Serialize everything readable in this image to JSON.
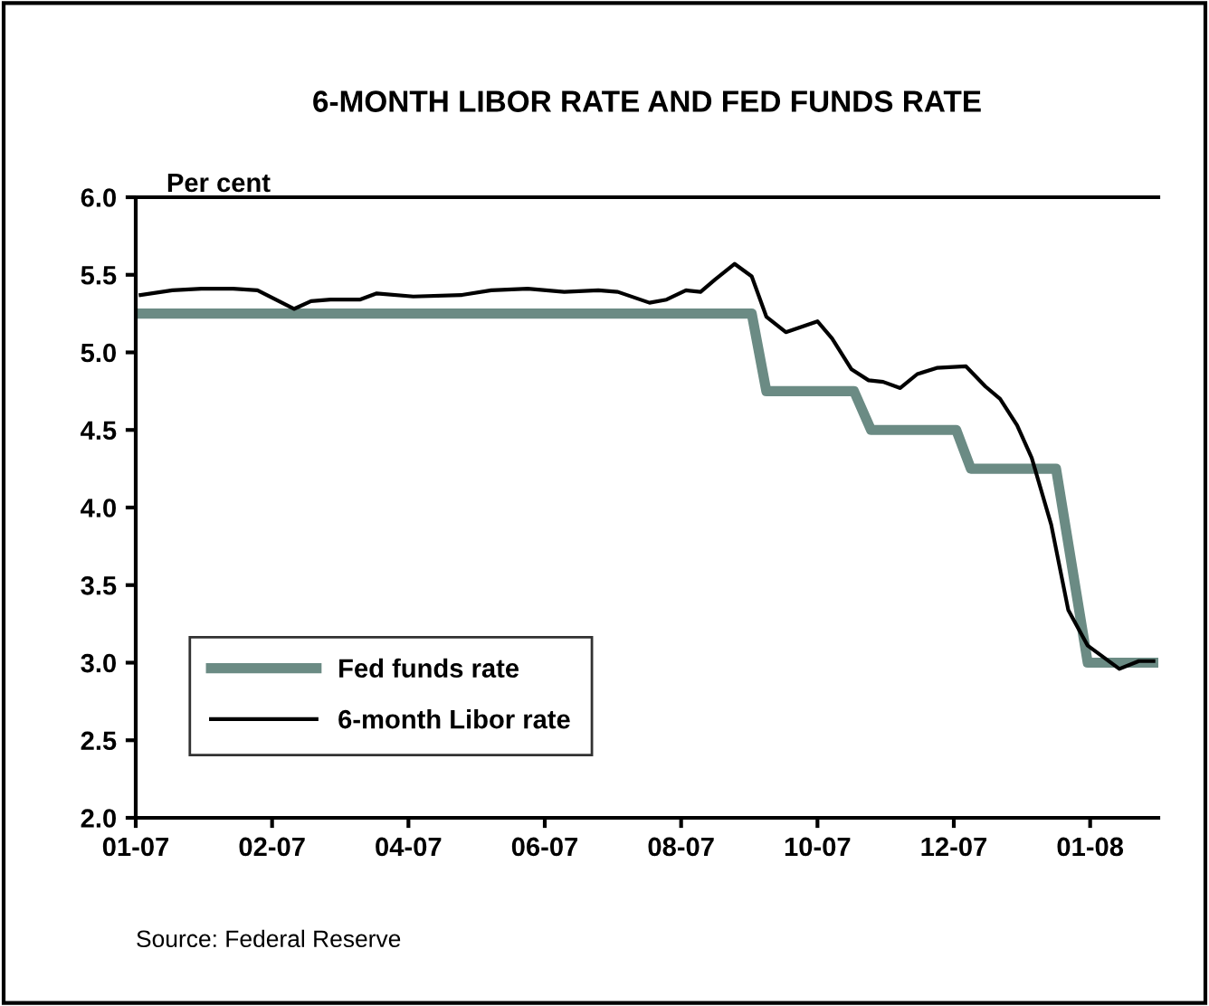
{
  "chart_data": {
    "type": "line",
    "title": "6-MONTH LIBOR RATE AND FED FUNDS RATE",
    "ylabel": "Per cent",
    "annotations": [
      "Source: Federal Reserve"
    ],
    "series": [
      {
        "name": "Fed funds rate",
        "color": "#6b8b84",
        "x": [
          "2007-01-05",
          "2007-09-13",
          "2007-09-19",
          "2007-10-25",
          "2007-11-01",
          "2007-12-06",
          "2007-12-12",
          "2008-01-16",
          "2008-01-29",
          "2008-02-25"
        ],
        "values": [
          5.25,
          5.25,
          4.75,
          4.75,
          4.5,
          4.5,
          4.25,
          4.25,
          3.0,
          3.0
        ]
      },
      {
        "name": "6-month Libor rate",
        "color": "#000000",
        "x": [
          "2007-01-05",
          "2007-01-18",
          "2007-01-30",
          "2007-02-12",
          "2007-02-22",
          "2007-03-09",
          "2007-03-16",
          "2007-03-24",
          "2007-04-05",
          "2007-04-12",
          "2007-04-27",
          "2007-05-17",
          "2007-05-29",
          "2007-06-13",
          "2007-06-28",
          "2007-07-12",
          "2007-07-20",
          "2007-08-02",
          "2007-08-09",
          "2007-08-17",
          "2007-08-23",
          "2007-08-29",
          "2007-09-06",
          "2007-09-13",
          "2007-09-19",
          "2007-09-27",
          "2007-10-10",
          "2007-10-16",
          "2007-10-24",
          "2007-10-31",
          "2007-11-06",
          "2007-11-13",
          "2007-11-20",
          "2007-11-28",
          "2007-12-10",
          "2007-12-18",
          "2007-12-24",
          "2007-12-31",
          "2008-01-06",
          "2008-01-14",
          "2008-01-21",
          "2008-01-29",
          "2008-02-11",
          "2008-02-19",
          "2008-02-25"
        ],
        "values": [
          5.37,
          5.4,
          5.41,
          5.41,
          5.4,
          5.28,
          5.33,
          5.34,
          5.34,
          5.38,
          5.36,
          5.37,
          5.4,
          5.41,
          5.39,
          5.4,
          5.39,
          5.32,
          5.34,
          5.4,
          5.39,
          5.47,
          5.57,
          5.49,
          5.23,
          5.13,
          5.2,
          5.09,
          4.89,
          4.82,
          4.81,
          4.77,
          4.86,
          4.9,
          4.91,
          4.78,
          4.7,
          4.53,
          4.32,
          3.89,
          3.34,
          3.11,
          2.96,
          3.01,
          3.01
        ]
      }
    ],
    "xlim": [
      "2007-01-03",
      "2008-02-27"
    ],
    "xticks": [
      {
        "value": "2007-01-03",
        "label": "01-07"
      },
      {
        "value": "2007-02-28",
        "label": "02-07"
      },
      {
        "value": "2007-04-25",
        "label": "04-07"
      },
      {
        "value": "2007-06-20",
        "label": "06-07"
      },
      {
        "value": "2007-08-15",
        "label": "08-07"
      },
      {
        "value": "2007-10-10",
        "label": "10-07"
      },
      {
        "value": "2007-12-05",
        "label": "12-07"
      },
      {
        "value": "2008-01-30",
        "label": "01-08"
      }
    ],
    "ylim": [
      2.0,
      6.0
    ],
    "yticks": [
      {
        "value": 2.0,
        "label": "2.0"
      },
      {
        "value": 2.5,
        "label": "2.5"
      },
      {
        "value": 3.0,
        "label": "3.0"
      },
      {
        "value": 3.5,
        "label": "3.5"
      },
      {
        "value": 4.0,
        "label": "4.0"
      },
      {
        "value": 4.5,
        "label": "4.5"
      },
      {
        "value": 5.0,
        "label": "5.0"
      },
      {
        "value": 5.5,
        "label": "5.5"
      },
      {
        "value": 6.0,
        "label": "6.0"
      }
    ],
    "grid": false,
    "legend": "bottom left",
    "marker": "none",
    "line_style": "solid"
  }
}
